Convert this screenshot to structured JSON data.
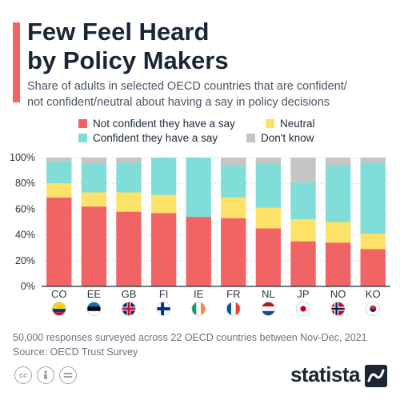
{
  "header": {
    "title_line1": "Few Feel Heard",
    "title_line2": "by Policy Makers",
    "subtitle_line1": "Share of adults in selected OECD countries that are confident/",
    "subtitle_line2": "not confident/neutral about having a say in policy decisions"
  },
  "legend": [
    {
      "label": "Not confident they have a say",
      "color": "#f06466"
    },
    {
      "label": "Neutral",
      "color": "#fde26a"
    },
    {
      "label": "Confident they have a say",
      "color": "#80ddd8"
    },
    {
      "label": "Don't know",
      "color": "#c5c5c5"
    }
  ],
  "chart_data": {
    "type": "bar",
    "stacked": true,
    "categories": [
      "CO",
      "EE",
      "GB",
      "FI",
      "IE",
      "FR",
      "NL",
      "JP",
      "NO",
      "KO"
    ],
    "flags": [
      "colombia-flag",
      "estonia-flag",
      "uk-flag",
      "finland-flag",
      "ireland-flag",
      "france-flag",
      "netherlands-flag",
      "japan-flag",
      "norway-flag",
      "korea-flag"
    ],
    "series": [
      {
        "name": "Not confident they have a say",
        "color": "#f06466",
        "values": [
          69,
          62,
          58,
          57,
          54,
          53,
          45,
          35,
          34,
          29
        ]
      },
      {
        "name": "Neutral",
        "color": "#fde26a",
        "values": [
          11,
          11,
          15,
          14,
          0,
          16,
          16,
          17,
          16,
          12
        ]
      },
      {
        "name": "Confident they have a say",
        "color": "#80ddd8",
        "values": [
          17,
          22,
          23,
          29,
          46,
          25,
          34,
          29,
          44,
          55
        ]
      },
      {
        "name": "Don't know",
        "color": "#c5c5c5",
        "values": [
          3,
          5,
          4,
          0,
          0,
          6,
          5,
          19,
          6,
          4
        ]
      }
    ],
    "ylim": [
      0,
      100
    ],
    "yticks": [
      "0%",
      "20%",
      "40%",
      "60%",
      "80%",
      "100%"
    ],
    "grid": true
  },
  "footer": {
    "note": "50,000 responses surveyed across 22 OECD countries between Nov-Dec, 2021",
    "source": "Source: OECD Trust Survey",
    "brand": "statista",
    "icons": [
      "creative-commons-icon",
      "attribution-icon",
      "no-derivatives-icon"
    ]
  }
}
